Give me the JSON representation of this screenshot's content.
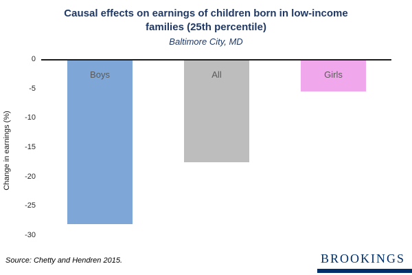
{
  "header": {
    "title_line1": "Causal effects on earnings of children born in low-income",
    "title_line2": "families (25th percentile)",
    "subtitle": "Baltimore City, MD"
  },
  "chart_data": {
    "type": "bar",
    "title": "Causal effects on earnings of children born in low-income families (25th percentile)",
    "subtitle": "Baltimore City, MD",
    "categories": [
      "Boys",
      "All",
      "Girls"
    ],
    "values": [
      -27.9,
      -17.3,
      -5.3
    ],
    "bar_colors": [
      "#7ea7d8",
      "#bdbdbd",
      "#f1a7ec"
    ],
    "xlabel": "",
    "ylabel": "Change in earnings (%)",
    "ylim": [
      0,
      -30
    ],
    "yticks": [
      0,
      -5,
      -10,
      -15,
      -20,
      -25,
      -30
    ],
    "grid": false,
    "legend": false
  },
  "footer": {
    "source": "Source: Chetty and Hendren 2015.",
    "logo": "BROOKINGS"
  },
  "colors": {
    "title_navy": "#1f3864",
    "brookings_navy": "#002f6c",
    "bar_label_gray": "#595959"
  }
}
